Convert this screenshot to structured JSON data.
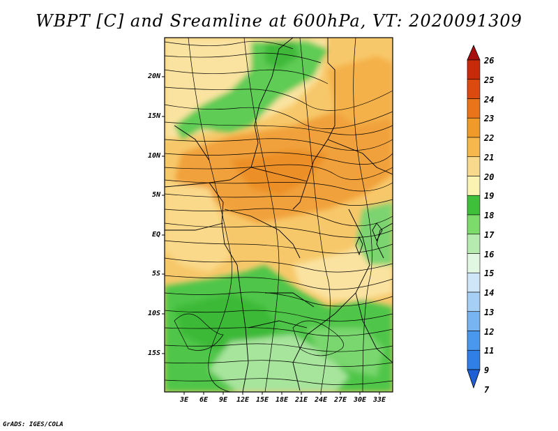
{
  "title": "WBPT [C] and Sreamline at 600hPa, VT: 2020091309",
  "credit": "GrADS: IGES/COLA",
  "lat_labels": [
    "20N",
    "15N",
    "10N",
    "5N",
    "EQ",
    "5S",
    "10S",
    "15S"
  ],
  "lon_labels": [
    "3E",
    "6E",
    "9E",
    "12E",
    "15E",
    "18E",
    "21E",
    "24E",
    "27E",
    "30E",
    "33E"
  ],
  "colorbar": {
    "levels": [
      "7",
      "9",
      "11",
      "12",
      "13",
      "14",
      "15",
      "16",
      "17",
      "18",
      "19",
      "20",
      "21",
      "22",
      "23",
      "24",
      "25",
      "26"
    ],
    "colors": [
      "#1f5fd6",
      "#2f7fe6",
      "#4a98ee",
      "#78b4f2",
      "#a6cff6",
      "#cfe6f8",
      "#e2f7e2",
      "#b6ebb0",
      "#7ddb6c",
      "#3fc03a",
      "#faf3b2",
      "#f9da8c",
      "#f6b84c",
      "#f09a29",
      "#ea7419",
      "#dd4a0f",
      "#c92a0a",
      "#a80e0e"
    ]
  },
  "palette": {
    "orange": "#f2a63a",
    "light_orange": "#f7c462",
    "yellow": "#fae3a0",
    "green": "#4fc94b",
    "light_green": "#a4e39a"
  }
}
